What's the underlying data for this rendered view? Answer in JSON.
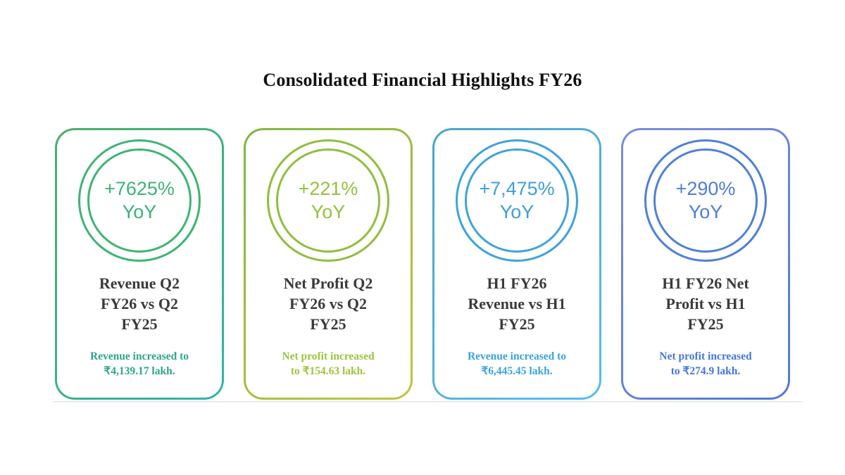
{
  "page": {
    "title": "Consolidated Financial Highlights FY26",
    "background": "#ffffff"
  },
  "cards": [
    {
      "percent": "+7625%",
      "yoy_label": "YoY",
      "title": "Revenue Q2\nFY26 vs Q2\nFY25",
      "description": "Revenue increased to\n₹4,139.17 lakh.",
      "colors": {
        "accent": "#3cb377",
        "ring": "#3db474",
        "desc": "#2ea58a",
        "border_from": "#4aaf64",
        "border_to": "#2eb4a7"
      }
    },
    {
      "percent": "+221%",
      "yoy_label": "YoY",
      "title": "Net Profit Q2\nFY26 vs Q2\nFY25",
      "description": "Net profit increased\nto ₹154.63 lakh.",
      "colors": {
        "accent": "#95c13d",
        "ring": "#8fbe3f",
        "desc": "#9cc43e",
        "border_from": "#7fb640",
        "border_to": "#bcc73c"
      }
    },
    {
      "percent": "+7,475%",
      "yoy_label": "YoY",
      "title": "H1 FY26\nRevenue vs H1\nFY25",
      "description": "Revenue increased to\n₹6,445.45 lakh.",
      "colors": {
        "accent": "#3f9fd8",
        "ring": "#3fa3d9",
        "desc": "#3aa3de",
        "border_from": "#4ba4c7",
        "border_to": "#55bdf0"
      }
    },
    {
      "percent": "+290%",
      "yoy_label": "YoY",
      "title": "H1 FY26 Net\nProfit vs H1\nFY25",
      "description": "Net profit increased\nto ₹274.9 lakh.",
      "colors": {
        "accent": "#4d7ed6",
        "ring": "#4f80d5",
        "desc": "#4677d8",
        "border_from": "#7b8eda",
        "border_to": "#527ad6"
      }
    }
  ],
  "chart_data": {
    "type": "table",
    "title": "Consolidated Financial Highlights FY26",
    "columns": [
      "metric",
      "yoy_change",
      "resulting_value"
    ],
    "rows": [
      [
        "Revenue Q2 FY26 vs Q2 FY25",
        "+7625% YoY",
        "₹4,139.17 lakh"
      ],
      [
        "Net Profit Q2 FY26 vs Q2 FY25",
        "+221% YoY",
        "₹154.63 lakh"
      ],
      [
        "H1 FY26 Revenue vs H1 FY25",
        "+7,475% YoY",
        "₹6,445.45 lakh"
      ],
      [
        "H1 FY26 Net Profit vs H1 FY25",
        "+290% YoY",
        "₹274.9 lakh"
      ]
    ]
  }
}
